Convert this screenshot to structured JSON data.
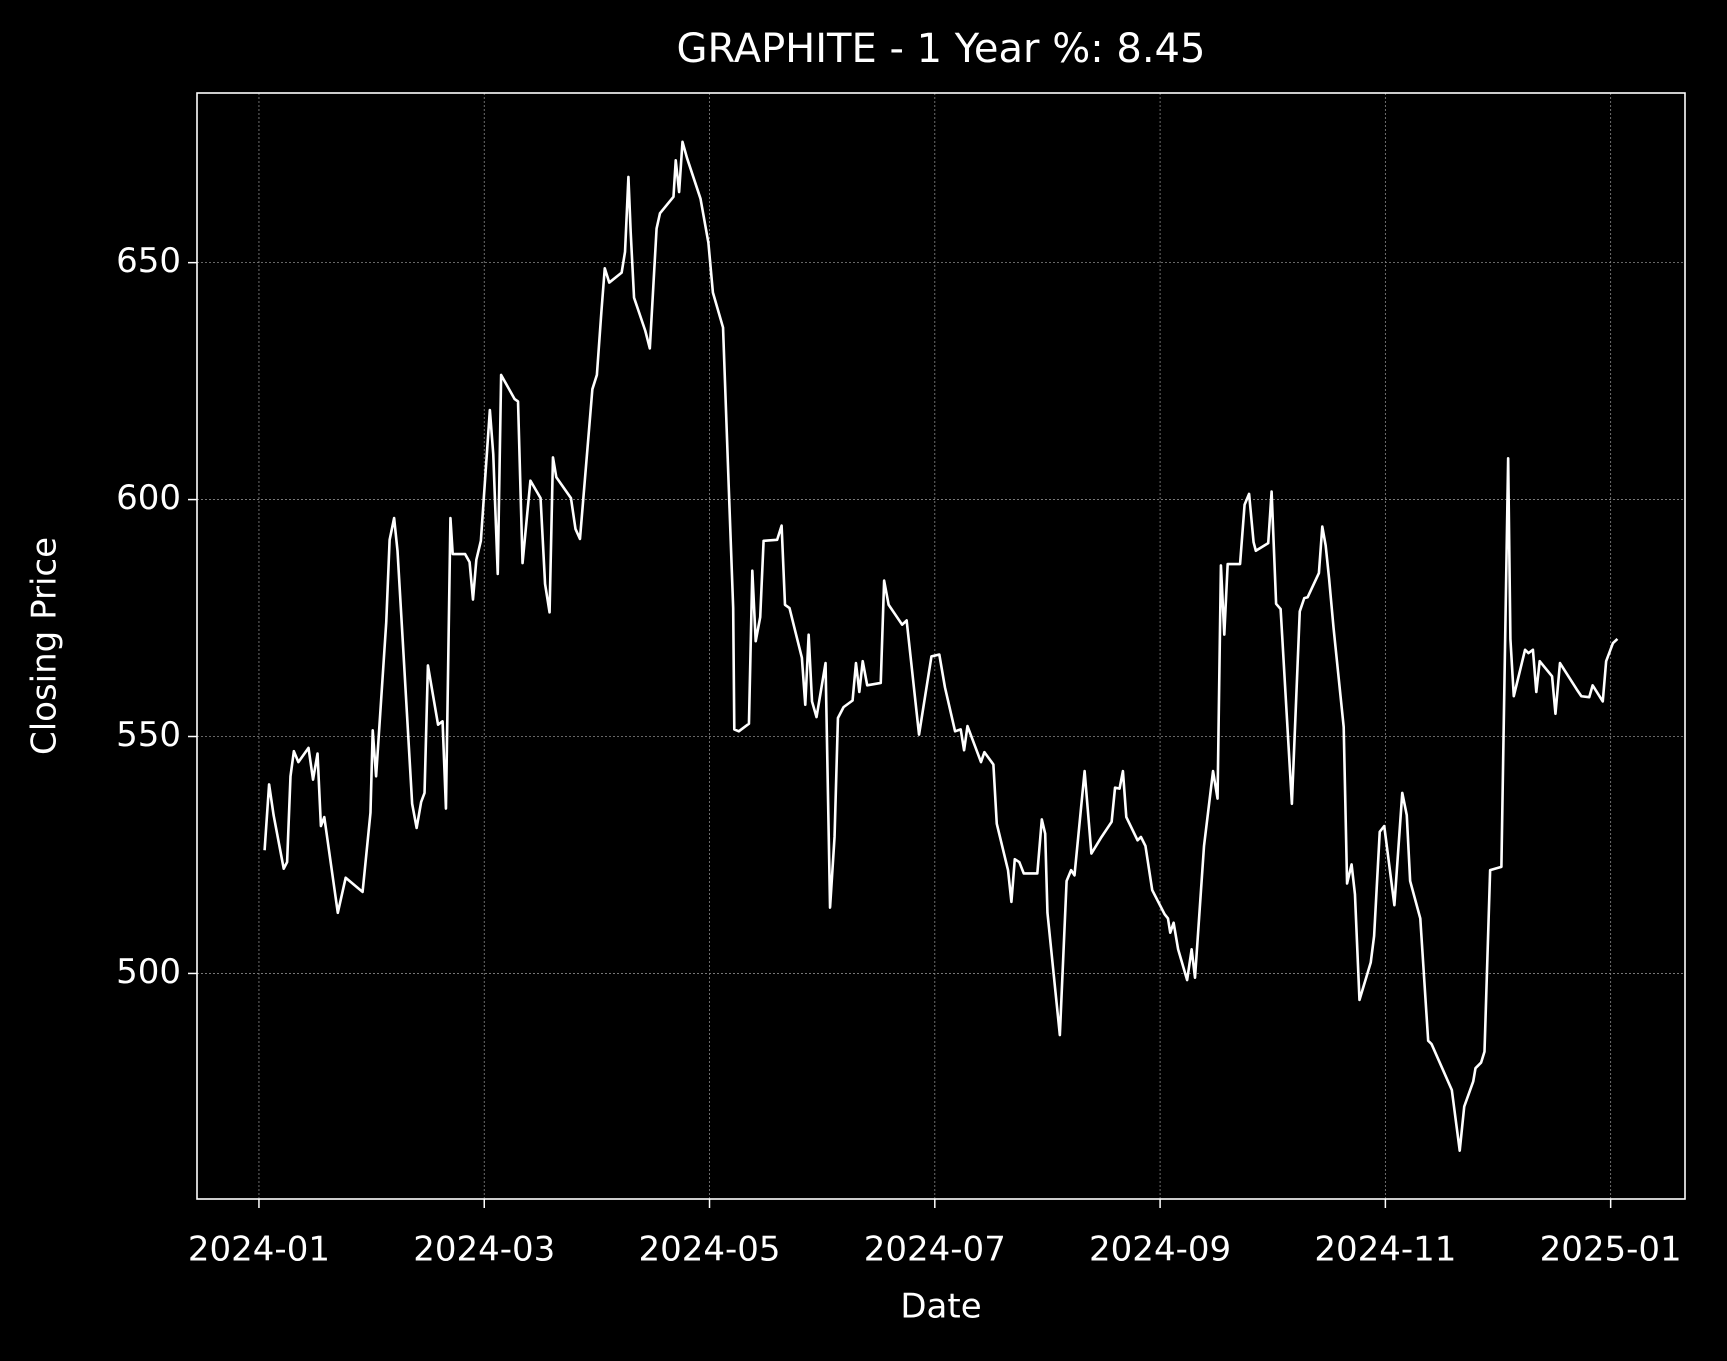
{
  "chart_data": {
    "type": "line",
    "title": "GRAPHITE - 1 Year %: 8.45",
    "xlabel": "Date",
    "ylabel": "Closing Price",
    "color": "#ffffff",
    "grid": true,
    "xlim": [
      -0.55,
      12.66
    ],
    "xticks": [
      {
        "value": 0,
        "label": "2024-01"
      },
      {
        "value": 2,
        "label": "2024-03"
      },
      {
        "value": 4,
        "label": "2024-05"
      },
      {
        "value": 6,
        "label": "2024-07"
      },
      {
        "value": 8,
        "label": "2024-09"
      },
      {
        "value": 10,
        "label": "2024-11"
      },
      {
        "value": 12,
        "label": "2025-01"
      }
    ],
    "ylim": [
      452.4,
      685.8
    ],
    "yticks": [
      500,
      550,
      600,
      650
    ],
    "x": [
      0.05,
      0.09,
      0.13,
      0.2,
      0.22,
      0.25,
      0.28,
      0.31,
      0.35,
      0.44,
      0.48,
      0.52,
      0.55,
      0.58,
      0.7,
      0.77,
      0.92,
      0.99,
      1.01,
      1.04,
      1.13,
      1.16,
      1.2,
      1.23,
      1.27,
      1.36,
      1.4,
      1.44,
      1.47,
      1.5,
      1.59,
      1.63,
      1.66,
      1.7,
      1.72,
      1.83,
      1.87,
      1.9,
      1.93,
      1.97,
      2.05,
      2.08,
      2.12,
      2.15,
      2.27,
      2.3,
      2.34,
      2.38,
      2.41,
      2.5,
      2.54,
      2.58,
      2.61,
      2.64,
      2.77,
      2.81,
      2.85,
      2.96,
      3.0,
      3.04,
      3.07,
      3.11,
      3.22,
      3.25,
      3.28,
      3.3,
      3.33,
      3.43,
      3.47,
      3.53,
      3.56,
      3.68,
      3.7,
      3.73,
      3.76,
      3.8,
      3.92,
      3.99,
      4.03,
      4.12,
      4.17,
      4.21,
      4.22,
      4.26,
      4.35,
      4.38,
      4.41,
      4.45,
      4.48,
      4.6,
      4.64,
      4.67,
      4.71,
      4.82,
      4.85,
      4.88,
      4.91,
      4.95,
      5.03,
      5.07,
      5.11,
      5.14,
      5.19,
      5.27,
      5.3,
      5.33,
      5.36,
      5.4,
      5.52,
      5.55,
      5.59,
      5.71,
      5.75,
      5.86,
      5.97,
      6.04,
      6.09,
      6.18,
      6.23,
      6.26,
      6.29,
      6.41,
      6.44,
      6.52,
      6.55,
      6.65,
      6.68,
      6.71,
      6.75,
      6.79,
      6.91,
      6.95,
      6.98,
      7.0,
      7.11,
      7.17,
      7.21,
      7.24,
      7.33,
      7.39,
      7.48,
      7.57,
      7.6,
      7.64,
      7.67,
      7.7,
      7.8,
      7.83,
      7.87,
      7.93,
      8.04,
      8.07,
      8.09,
      8.12,
      8.16,
      8.24,
      8.28,
      8.31,
      8.39,
      8.47,
      8.51,
      8.54,
      8.57,
      8.6,
      8.71,
      8.75,
      8.79,
      8.83,
      8.85,
      8.96,
      8.99,
      9.03,
      9.07,
      9.17,
      9.24,
      9.28,
      9.31,
      9.41,
      9.44,
      9.47,
      9.5,
      9.54,
      9.63,
      9.66,
      9.7,
      9.73,
      9.77,
      9.87,
      9.9,
      9.95,
      9.99,
      10.08,
      10.15,
      10.19,
      10.22,
      10.31,
      10.38,
      10.41,
      10.59,
      10.66,
      10.7,
      10.78,
      10.8,
      10.85,
      10.88,
      10.93,
      11.03,
      11.09,
      11.11,
      11.14,
      11.24,
      11.27,
      11.31,
      11.34,
      11.37,
      11.48,
      11.51,
      11.55,
      11.7,
      11.74,
      11.81,
      11.84,
      11.93,
      11.96,
      12.02,
      12.06
    ],
    "values": [
      526.0,
      539.9,
      533.4,
      524.6,
      522.1,
      523.5,
      541.6,
      546.9,
      544.6,
      547.6,
      540.9,
      546.4,
      531.1,
      533.0,
      512.8,
      520.2,
      517.2,
      533.9,
      551.3,
      541.6,
      574.1,
      591.5,
      596.1,
      589.2,
      572.9,
      535.8,
      530.7,
      536.2,
      538.1,
      565.0,
      552.5,
      553.2,
      534.8,
      596.1,
      588.5,
      588.5,
      586.8,
      578.9,
      587.3,
      591.3,
      618.9,
      609.6,
      584.3,
      626.3,
      621.2,
      620.7,
      586.6,
      596.6,
      604.0,
      600.3,
      582.2,
      576.2,
      608.9,
      604.7,
      600.3,
      593.8,
      591.7,
      623.3,
      626.3,
      639.6,
      648.8,
      645.8,
      647.9,
      652.3,
      668.1,
      656.5,
      642.6,
      635.6,
      631.9,
      657.2,
      660.4,
      663.9,
      671.6,
      664.9,
      675.5,
      672.1,
      663.5,
      654.2,
      643.7,
      636.3,
      603.1,
      577.1,
      551.5,
      551.1,
      552.7,
      585.0,
      570.1,
      575.2,
      591.3,
      591.5,
      594.5,
      577.8,
      577.1,
      566.6,
      556.7,
      571.5,
      557.4,
      554.1,
      565.5,
      513.9,
      528.8,
      553.9,
      556.2,
      557.6,
      565.5,
      559.4,
      565.9,
      560.8,
      561.3,
      582.9,
      577.8,
      573.6,
      574.5,
      550.4,
      566.9,
      567.3,
      560.4,
      551.1,
      551.5,
      547.1,
      552.2,
      544.6,
      546.7,
      544.1,
      531.6,
      521.8,
      515.1,
      524.1,
      523.5,
      521.1,
      521.1,
      532.5,
      529.5,
      512.8,
      487.0,
      519.5,
      521.8,
      520.7,
      542.7,
      525.3,
      528.8,
      532.0,
      539.2,
      539.0,
      542.7,
      533.0,
      528.1,
      528.8,
      526.9,
      517.6,
      512.5,
      511.6,
      508.6,
      510.7,
      505.1,
      498.6,
      505.1,
      499.1,
      526.9,
      542.7,
      536.9,
      586.1,
      571.5,
      586.4,
      586.4,
      598.9,
      601.2,
      591.0,
      589.2,
      590.8,
      601.7,
      578.0,
      576.9,
      535.8,
      576.4,
      579.2,
      579.4,
      584.5,
      594.3,
      590.3,
      583.4,
      572.9,
      552.0,
      519.0,
      523.0,
      516.7,
      494.4,
      502.3,
      507.9,
      529.9,
      531.1,
      514.4,
      538.1,
      533.4,
      519.5,
      511.6,
      485.8,
      485.1,
      475.4,
      462.6,
      471.9,
      477.2,
      480.0,
      481.2,
      483.5,
      521.8,
      522.5,
      608.7,
      570.6,
      558.5,
      568.3,
      567.6,
      568.3,
      559.4,
      565.9,
      562.7,
      554.8,
      565.5,
      559.9,
      558.5,
      558.3,
      560.8,
      557.4,
      565.9,
      569.7,
      570.6
    ]
  }
}
